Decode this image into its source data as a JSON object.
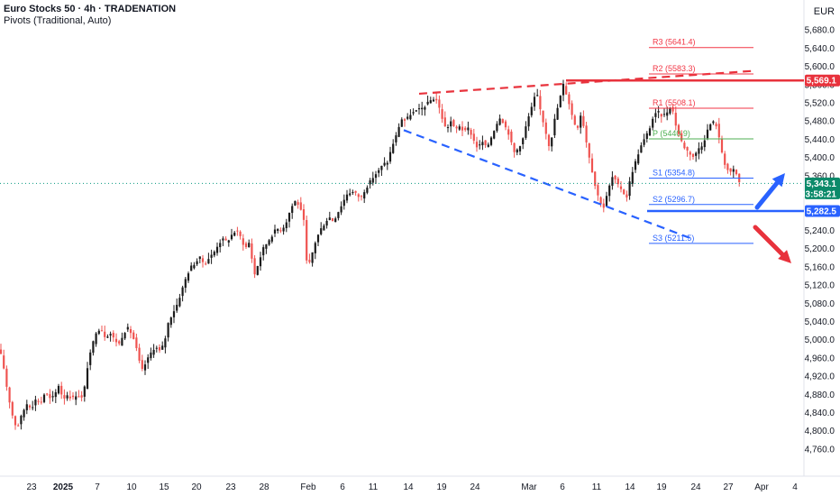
{
  "header": {
    "title": "Euro Stocks 50 · 4h · TRADENATION",
    "indicator": "Pivots (Traditional, Auto)",
    "currency": "EUR"
  },
  "colors": {
    "up": "#26a69a",
    "down": "#ef5350",
    "candle_up": "#1b1b1b",
    "red_line": "#e8323c",
    "blue_line": "#2962ff",
    "pivot_r": "#f23645",
    "pivot_p": "#4caf50",
    "pivot_s": "#2962ff",
    "last_price": "#0b8a6a",
    "current_line": "#089981"
  },
  "chart_data": {
    "type": "candlestick",
    "interval": "4h",
    "y_axis": {
      "min": 4740,
      "max": 5720,
      "ticks": [
        4760,
        4800,
        4840,
        4880,
        4920,
        4960,
        5000,
        5040,
        5080,
        5120,
        5160,
        5200,
        5240,
        5280,
        5320,
        5360,
        5400,
        5440,
        5480,
        5520,
        5560,
        5600,
        5640,
        5680
      ],
      "tick_labels": [
        "4,760.0",
        "4,800.0",
        "4,840.0",
        "4,880.0",
        "4,920.0",
        "4,960.0",
        "5,000.0",
        "5,040.0",
        "5,080.0",
        "5,120.0",
        "5,160.0",
        "5,200.0",
        "5,240.0",
        "5,280.0",
        "5,320.0",
        "5,360.0",
        "5,400.0",
        "5,440.0",
        "5,480.0",
        "5,520.0",
        "5,560.0",
        "5,600.0",
        "5,640.0",
        "5,680.0"
      ]
    },
    "x_axis": {
      "labels": [
        {
          "label": "23",
          "bold": false
        },
        {
          "label": "2025",
          "bold": true
        },
        {
          "label": "7",
          "bold": false
        },
        {
          "label": "10",
          "bold": false
        },
        {
          "label": "15",
          "bold": false
        },
        {
          "label": "20",
          "bold": false
        },
        {
          "label": "23",
          "bold": false
        },
        {
          "label": "28",
          "bold": false
        },
        {
          "label": "Feb",
          "bold": false
        },
        {
          "label": "6",
          "bold": false
        },
        {
          "label": "11",
          "bold": false
        },
        {
          "label": "14",
          "bold": false
        },
        {
          "label": "19",
          "bold": false
        },
        {
          "label": "24",
          "bold": false
        },
        {
          "label": "Mar",
          "bold": false
        },
        {
          "label": "6",
          "bold": false
        },
        {
          "label": "11",
          "bold": false
        },
        {
          "label": "14",
          "bold": false
        },
        {
          "label": "19",
          "bold": false
        },
        {
          "label": "24",
          "bold": false
        },
        {
          "label": "27",
          "bold": false
        },
        {
          "label": "Apr",
          "bold": false
        },
        {
          "label": "4",
          "bold": false
        }
      ]
    },
    "price_path": [
      [
        0,
        4975
      ],
      [
        4,
        4940
      ],
      [
        8,
        4890
      ],
      [
        12,
        4850
      ],
      [
        16,
        4815
      ],
      [
        20,
        4810
      ],
      [
        25,
        4840
      ],
      [
        30,
        4860
      ],
      [
        35,
        4850
      ],
      [
        40,
        4870
      ],
      [
        45,
        4860
      ],
      [
        50,
        4885
      ],
      [
        55,
        4870
      ],
      [
        60,
        4875
      ],
      [
        65,
        4900
      ],
      [
        70,
        4870
      ],
      [
        75,
        4880
      ],
      [
        80,
        4870
      ],
      [
        85,
        4880
      ],
      [
        92,
        4870
      ],
      [
        97,
        4940
      ],
      [
        102,
        4985
      ],
      [
        107,
        5020
      ],
      [
        112,
        5025
      ],
      [
        117,
        5005
      ],
      [
        122,
        5015
      ],
      [
        127,
        5000
      ],
      [
        132,
        4990
      ],
      [
        137,
        5015
      ],
      [
        142,
        5025
      ],
      [
        147,
        5010
      ],
      [
        152,
        4975
      ],
      [
        157,
        4930
      ],
      [
        162,
        4950
      ],
      [
        167,
        4970
      ],
      [
        172,
        4985
      ],
      [
        177,
        4975
      ],
      [
        182,
        4990
      ],
      [
        187,
        5040
      ],
      [
        192,
        5060
      ],
      [
        197,
        5080
      ],
      [
        202,
        5110
      ],
      [
        207,
        5140
      ],
      [
        212,
        5160
      ],
      [
        217,
        5170
      ],
      [
        222,
        5180
      ],
      [
        227,
        5165
      ],
      [
        232,
        5180
      ],
      [
        237,
        5190
      ],
      [
        242,
        5210
      ],
      [
        247,
        5220
      ],
      [
        252,
        5215
      ],
      [
        257,
        5230
      ],
      [
        262,
        5240
      ],
      [
        267,
        5225
      ],
      [
        272,
        5200
      ],
      [
        277,
        5215
      ],
      [
        282,
        5140
      ],
      [
        287,
        5170
      ],
      [
        292,
        5200
      ],
      [
        297,
        5215
      ],
      [
        302,
        5230
      ],
      [
        307,
        5245
      ],
      [
        312,
        5240
      ],
      [
        317,
        5255
      ],
      [
        322,
        5285
      ],
      [
        327,
        5305
      ],
      [
        332,
        5295
      ],
      [
        337,
        5260
      ],
      [
        341,
        5150
      ],
      [
        345,
        5180
      ],
      [
        350,
        5215
      ],
      [
        355,
        5240
      ],
      [
        360,
        5255
      ],
      [
        365,
        5270
      ],
      [
        370,
        5260
      ],
      [
        375,
        5280
      ],
      [
        380,
        5300
      ],
      [
        385,
        5320
      ],
      [
        390,
        5325
      ],
      [
        395,
        5320
      ],
      [
        400,
        5310
      ],
      [
        405,
        5330
      ],
      [
        410,
        5345
      ],
      [
        415,
        5360
      ],
      [
        420,
        5370
      ],
      [
        425,
        5385
      ],
      [
        430,
        5390
      ],
      [
        435,
        5425
      ],
      [
        440,
        5450
      ],
      [
        445,
        5485
      ],
      [
        450,
        5480
      ],
      [
        455,
        5495
      ],
      [
        460,
        5500
      ],
      [
        465,
        5505
      ],
      [
        470,
        5510
      ],
      [
        475,
        5520
      ],
      [
        480,
        5530
      ],
      [
        485,
        5525
      ],
      [
        490,
        5490
      ],
      [
        495,
        5460
      ],
      [
        500,
        5480
      ],
      [
        505,
        5460
      ],
      [
        510,
        5470
      ],
      [
        515,
        5455
      ],
      [
        520,
        5465
      ],
      [
        525,
        5440
      ],
      [
        530,
        5420
      ],
      [
        535,
        5435
      ],
      [
        540,
        5420
      ],
      [
        545,
        5445
      ],
      [
        550,
        5470
      ],
      [
        555,
        5490
      ],
      [
        560,
        5470
      ],
      [
        565,
        5450
      ],
      [
        570,
        5410
      ],
      [
        575,
        5420
      ],
      [
        580,
        5440
      ],
      [
        585,
        5480
      ],
      [
        590,
        5510
      ],
      [
        595,
        5545
      ],
      [
        600,
        5500
      ],
      [
        605,
        5460
      ],
      [
        610,
        5420
      ],
      [
        615,
        5480
      ],
      [
        620,
        5520
      ],
      [
        625,
        5560
      ],
      [
        630,
        5530
      ],
      [
        635,
        5490
      ],
      [
        640,
        5460
      ],
      [
        645,
        5500
      ],
      [
        650,
        5440
      ],
      [
        655,
        5390
      ],
      [
        660,
        5340
      ],
      [
        665,
        5305
      ],
      [
        670,
        5290
      ],
      [
        675,
        5330
      ],
      [
        680,
        5360
      ],
      [
        685,
        5340
      ],
      [
        690,
        5330
      ],
      [
        695,
        5310
      ],
      [
        700,
        5360
      ],
      [
        705,
        5390
      ],
      [
        710,
        5420
      ],
      [
        715,
        5440
      ],
      [
        720,
        5460
      ],
      [
        725,
        5490
      ],
      [
        730,
        5500
      ],
      [
        735,
        5490
      ],
      [
        740,
        5500
      ],
      [
        745,
        5515
      ],
      [
        750,
        5470
      ],
      [
        755,
        5440
      ],
      [
        760,
        5420
      ],
      [
        765,
        5410
      ],
      [
        770,
        5400
      ],
      [
        775,
        5420
      ],
      [
        780,
        5430
      ],
      [
        785,
        5460
      ],
      [
        790,
        5480
      ],
      [
        795,
        5470
      ],
      [
        800,
        5420
      ],
      [
        805,
        5380
      ],
      [
        810,
        5365
      ],
      [
        815,
        5375
      ],
      [
        820,
        5345
      ],
      [
        823,
        5343
      ]
    ],
    "pivots": [
      {
        "label": "R3 (5641.4)",
        "value": 5641.4,
        "kind": "r"
      },
      {
        "label": "R2 (5583.3)",
        "value": 5583.3,
        "kind": "r"
      },
      {
        "label": "R1 (5508.1)",
        "value": 5508.1,
        "kind": "r"
      },
      {
        "label": "P (5440.9)",
        "value": 5440.9,
        "kind": "p"
      },
      {
        "label": "S1 (5354.8)",
        "value": 5354.8,
        "kind": "s"
      },
      {
        "label": "S2 (5296.7)",
        "value": 5296.7,
        "kind": "s"
      },
      {
        "label": "S3 (5211.5)",
        "value": 5211.5,
        "kind": "s"
      }
    ],
    "levels": [
      {
        "name": "resistance",
        "value": 5569.1,
        "label": "5,569.1",
        "color": "red_line"
      },
      {
        "name": "support",
        "value": 5282.5,
        "label": "5,282.5",
        "color": "blue_line"
      }
    ],
    "last_price": {
      "value": 5343.1,
      "label": "5,343.1",
      "countdown": "03:58:21"
    },
    "trendlines": [
      {
        "name": "upper-channel",
        "from": [
          465,
          5540
        ],
        "to": [
          835,
          5590
        ],
        "style": "dashed",
        "color": "red_line"
      },
      {
        "name": "lower-channel",
        "from": [
          448,
          5460
        ],
        "to": [
          770,
          5220
        ],
        "style": "dashed",
        "color": "blue_line"
      }
    ]
  }
}
